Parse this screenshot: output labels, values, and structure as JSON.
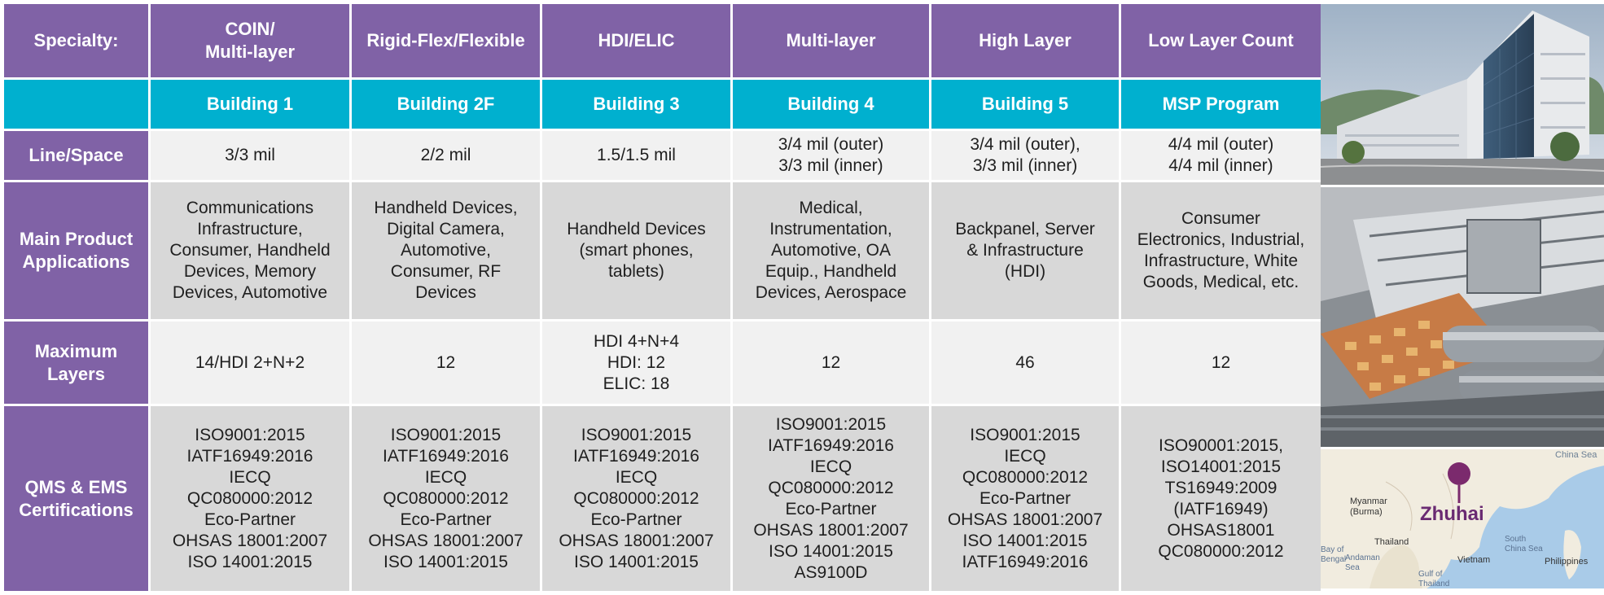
{
  "table": {
    "header": {
      "label": "Specialty:",
      "columns": [
        "COIN/\nMulti-layer",
        "Rigid-Flex/Flexible",
        "HDI/ELIC",
        "Multi-layer",
        "High Layer",
        "Low Layer Count"
      ]
    },
    "buildings": [
      "Building 1",
      "Building 2F",
      "Building 3",
      "Building 4",
      "Building 5",
      "MSP Program"
    ],
    "rows": [
      {
        "label": "Line/Space",
        "values": [
          "3/3 mil",
          "2/2 mil",
          "1.5/1.5 mil",
          "3/4 mil (outer)\n3/3 mil (inner)",
          "3/4 mil  (outer),\n3/3 mil  (inner)",
          "4/4 mil (outer)\n4/4 mil (inner)"
        ]
      },
      {
        "label": "Main Product\nApplications",
        "values": [
          "Communications\nInfrastructure,\nConsumer, Handheld\nDevices, Memory\nDevices, Automotive",
          "Handheld Devices,\nDigital Camera,\nAutomotive,\nConsumer, RF\nDevices",
          "Handheld  Devices\n(smart phones,\ntablets)",
          "Medical,\nInstrumentation,\nAutomotive, OA\nEquip., Handheld\nDevices, Aerospace",
          "Backpanel, Server\n& Infrastructure\n(HDI)",
          "Consumer\nElectronics, Industrial,\nInfrastructure, White\nGoods, Medical, etc."
        ]
      },
      {
        "label": "Maximum\nLayers",
        "values": [
          "14/HDI 2+N+2",
          "12",
          "HDI 4+N+4\nHDI: 12\nELIC: 18",
          "12",
          "46",
          "12"
        ]
      },
      {
        "label": "QMS & EMS\nCertifications",
        "values": [
          "ISO9001:2015\nIATF16949:2016\nIECQ\nQC080000:2012\nEco-Partner\nOHSAS 18001:2007\nISO 14001:2015",
          "ISO9001:2015\nIATF16949:2016\nIECQ\nQC080000:2012\nEco-Partner\nOHSAS 18001:2007\nISO 14001:2015",
          "ISO9001:2015\nIATF16949:2016\nIECQ\nQC080000:2012\nEco-Partner\nOHSAS 18001:2007\nISO 14001:2015",
          "ISO9001:2015\nIATF16949:2016\nIECQ\nQC080000:2012\nEco-Partner\nOHSAS 18001:2007\nISO 14001:2015\nAS9100D",
          "ISO9001:2015\nIECQ\nQC080000:2012\nEco-Partner\nOHSAS 18001:2007\nISO 14001:2015\nIATF16949:2016",
          "ISO90001:2015,\nISO14001:2015\nTS16949:2009\n(IATF16949)\nOHSAS18001\nQC080000:2012"
        ]
      }
    ]
  },
  "map": {
    "city": "Zhuhai",
    "places": [
      "China Sea",
      "Myanmar\n(Burma)",
      "Thailand",
      "Vietnam",
      "South\nChina Sea",
      "Philippines",
      "Bay of\nBengal",
      "Andaman\nSea",
      "Gulf of\nThailand"
    ]
  },
  "colors": {
    "header_purple": "#8062a6",
    "building_cyan": "#00b0cf",
    "cell_light": "#f1f1f1",
    "cell_dark": "#d8d8d8"
  }
}
